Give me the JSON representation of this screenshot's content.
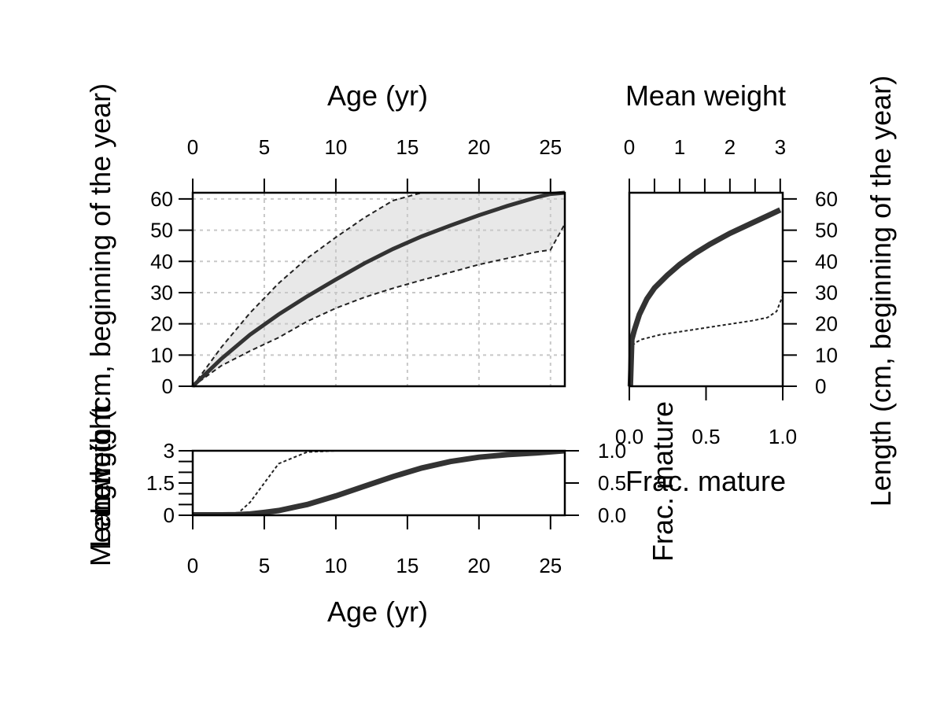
{
  "chart_data": [
    {
      "id": "length_at_age",
      "type": "area",
      "xlabel": "Age (yr)",
      "ylabel": "Length (cm, beginning of the year)",
      "xlim": [
        0,
        26
      ],
      "ylim": [
        0,
        62
      ],
      "xticks": [
        0,
        5,
        10,
        15,
        20,
        25
      ],
      "yticks": [
        0,
        10,
        20,
        30,
        40,
        50,
        60
      ],
      "grid": true,
      "x": [
        0,
        2,
        4,
        6,
        8,
        10,
        12,
        14,
        16,
        18,
        20,
        22,
        24,
        25,
        26
      ],
      "series": [
        {
          "role": "mean",
          "values": [
            0,
            8.8,
            16.5,
            23,
            28.8,
            34.2,
            39.4,
            44,
            48,
            51.5,
            54.8,
            57.8,
            60.5,
            61.6,
            62
          ]
        },
        {
          "role": "upper",
          "values": [
            0,
            12.5,
            23.5,
            33,
            41,
            47.7,
            54,
            59.5,
            62,
            62,
            62,
            62,
            62,
            62,
            62
          ]
        },
        {
          "role": "lower",
          "values": [
            0,
            6.6,
            11.3,
            15.6,
            20.8,
            25,
            28.5,
            31.4,
            34,
            36.5,
            39,
            41,
            43,
            43.7,
            52
          ]
        }
      ],
      "colors": {
        "band": "#e8e8e8",
        "line": "#333333",
        "grid": "#c8c8c8"
      }
    },
    {
      "id": "length_weight",
      "type": "line",
      "xlabel": "Mean weight",
      "ylabel": "Length (cm, beginning of the year)",
      "x2label": "Frac. mature",
      "xlim": [
        0,
        3.05
      ],
      "ylim": [
        0,
        62
      ],
      "xticks": [
        0,
        1,
        2,
        3
      ],
      "yticks": [
        0,
        10,
        20,
        30,
        40,
        50,
        60
      ],
      "x2ticks": [
        "0.0",
        "0.5",
        "1.0"
      ],
      "x2lim": [
        0,
        1
      ],
      "grid": false,
      "series": [
        {
          "role": "weight",
          "axis": "x",
          "x": [
            0.02,
            0.05,
            0.1,
            0.2,
            0.35,
            0.5,
            0.75,
            1.0,
            1.3,
            1.6,
            2.0,
            2.4,
            2.8,
            3.0
          ],
          "y": [
            0,
            15,
            18,
            23,
            28,
            31.5,
            35.5,
            39,
            42.5,
            45.5,
            49,
            52,
            55,
            56.5
          ]
        },
        {
          "role": "maturity",
          "axis": "x2",
          "x": [
            0.02,
            0.04,
            0.08,
            0.2,
            0.4,
            0.6,
            0.8,
            0.9,
            0.96,
            1.0
          ],
          "y": [
            13,
            14,
            15,
            16.5,
            18,
            19.5,
            21,
            22,
            24,
            29
          ]
        }
      ]
    },
    {
      "id": "weight_maturity_at_age",
      "type": "line",
      "xlabel": "Age (yr)",
      "ylabel": "Mean weight",
      "y2label": "Frac. mature",
      "overlap_label": "Length (cm",
      "xlim": [
        0,
        26
      ],
      "ylim": [
        0,
        3
      ],
      "xticks": [
        0,
        5,
        10,
        15,
        20,
        25
      ],
      "yticks": [
        "0",
        "1.5",
        "3"
      ],
      "y2ticks": [
        "0.0",
        "0.5",
        "1.0"
      ],
      "y2lim": [
        0,
        1
      ],
      "grid": false,
      "x": [
        0,
        2,
        3,
        4,
        5,
        6,
        8,
        10,
        12,
        14,
        16,
        18,
        20,
        22,
        24,
        26
      ],
      "series": [
        {
          "role": "weight",
          "axis": "y",
          "values": [
            0.02,
            0.02,
            0.03,
            0.06,
            0.13,
            0.22,
            0.5,
            0.9,
            1.35,
            1.8,
            2.2,
            2.5,
            2.7,
            2.82,
            2.9,
            3.0
          ]
        },
        {
          "role": "maturity",
          "axis": "y2",
          "values": [
            0,
            0,
            0,
            0.2,
            0.5,
            0.8,
            0.98,
            1.0,
            1.0,
            1.0,
            1.0,
            1.0,
            1.0,
            1.0,
            1.0,
            1.0
          ]
        }
      ]
    }
  ]
}
